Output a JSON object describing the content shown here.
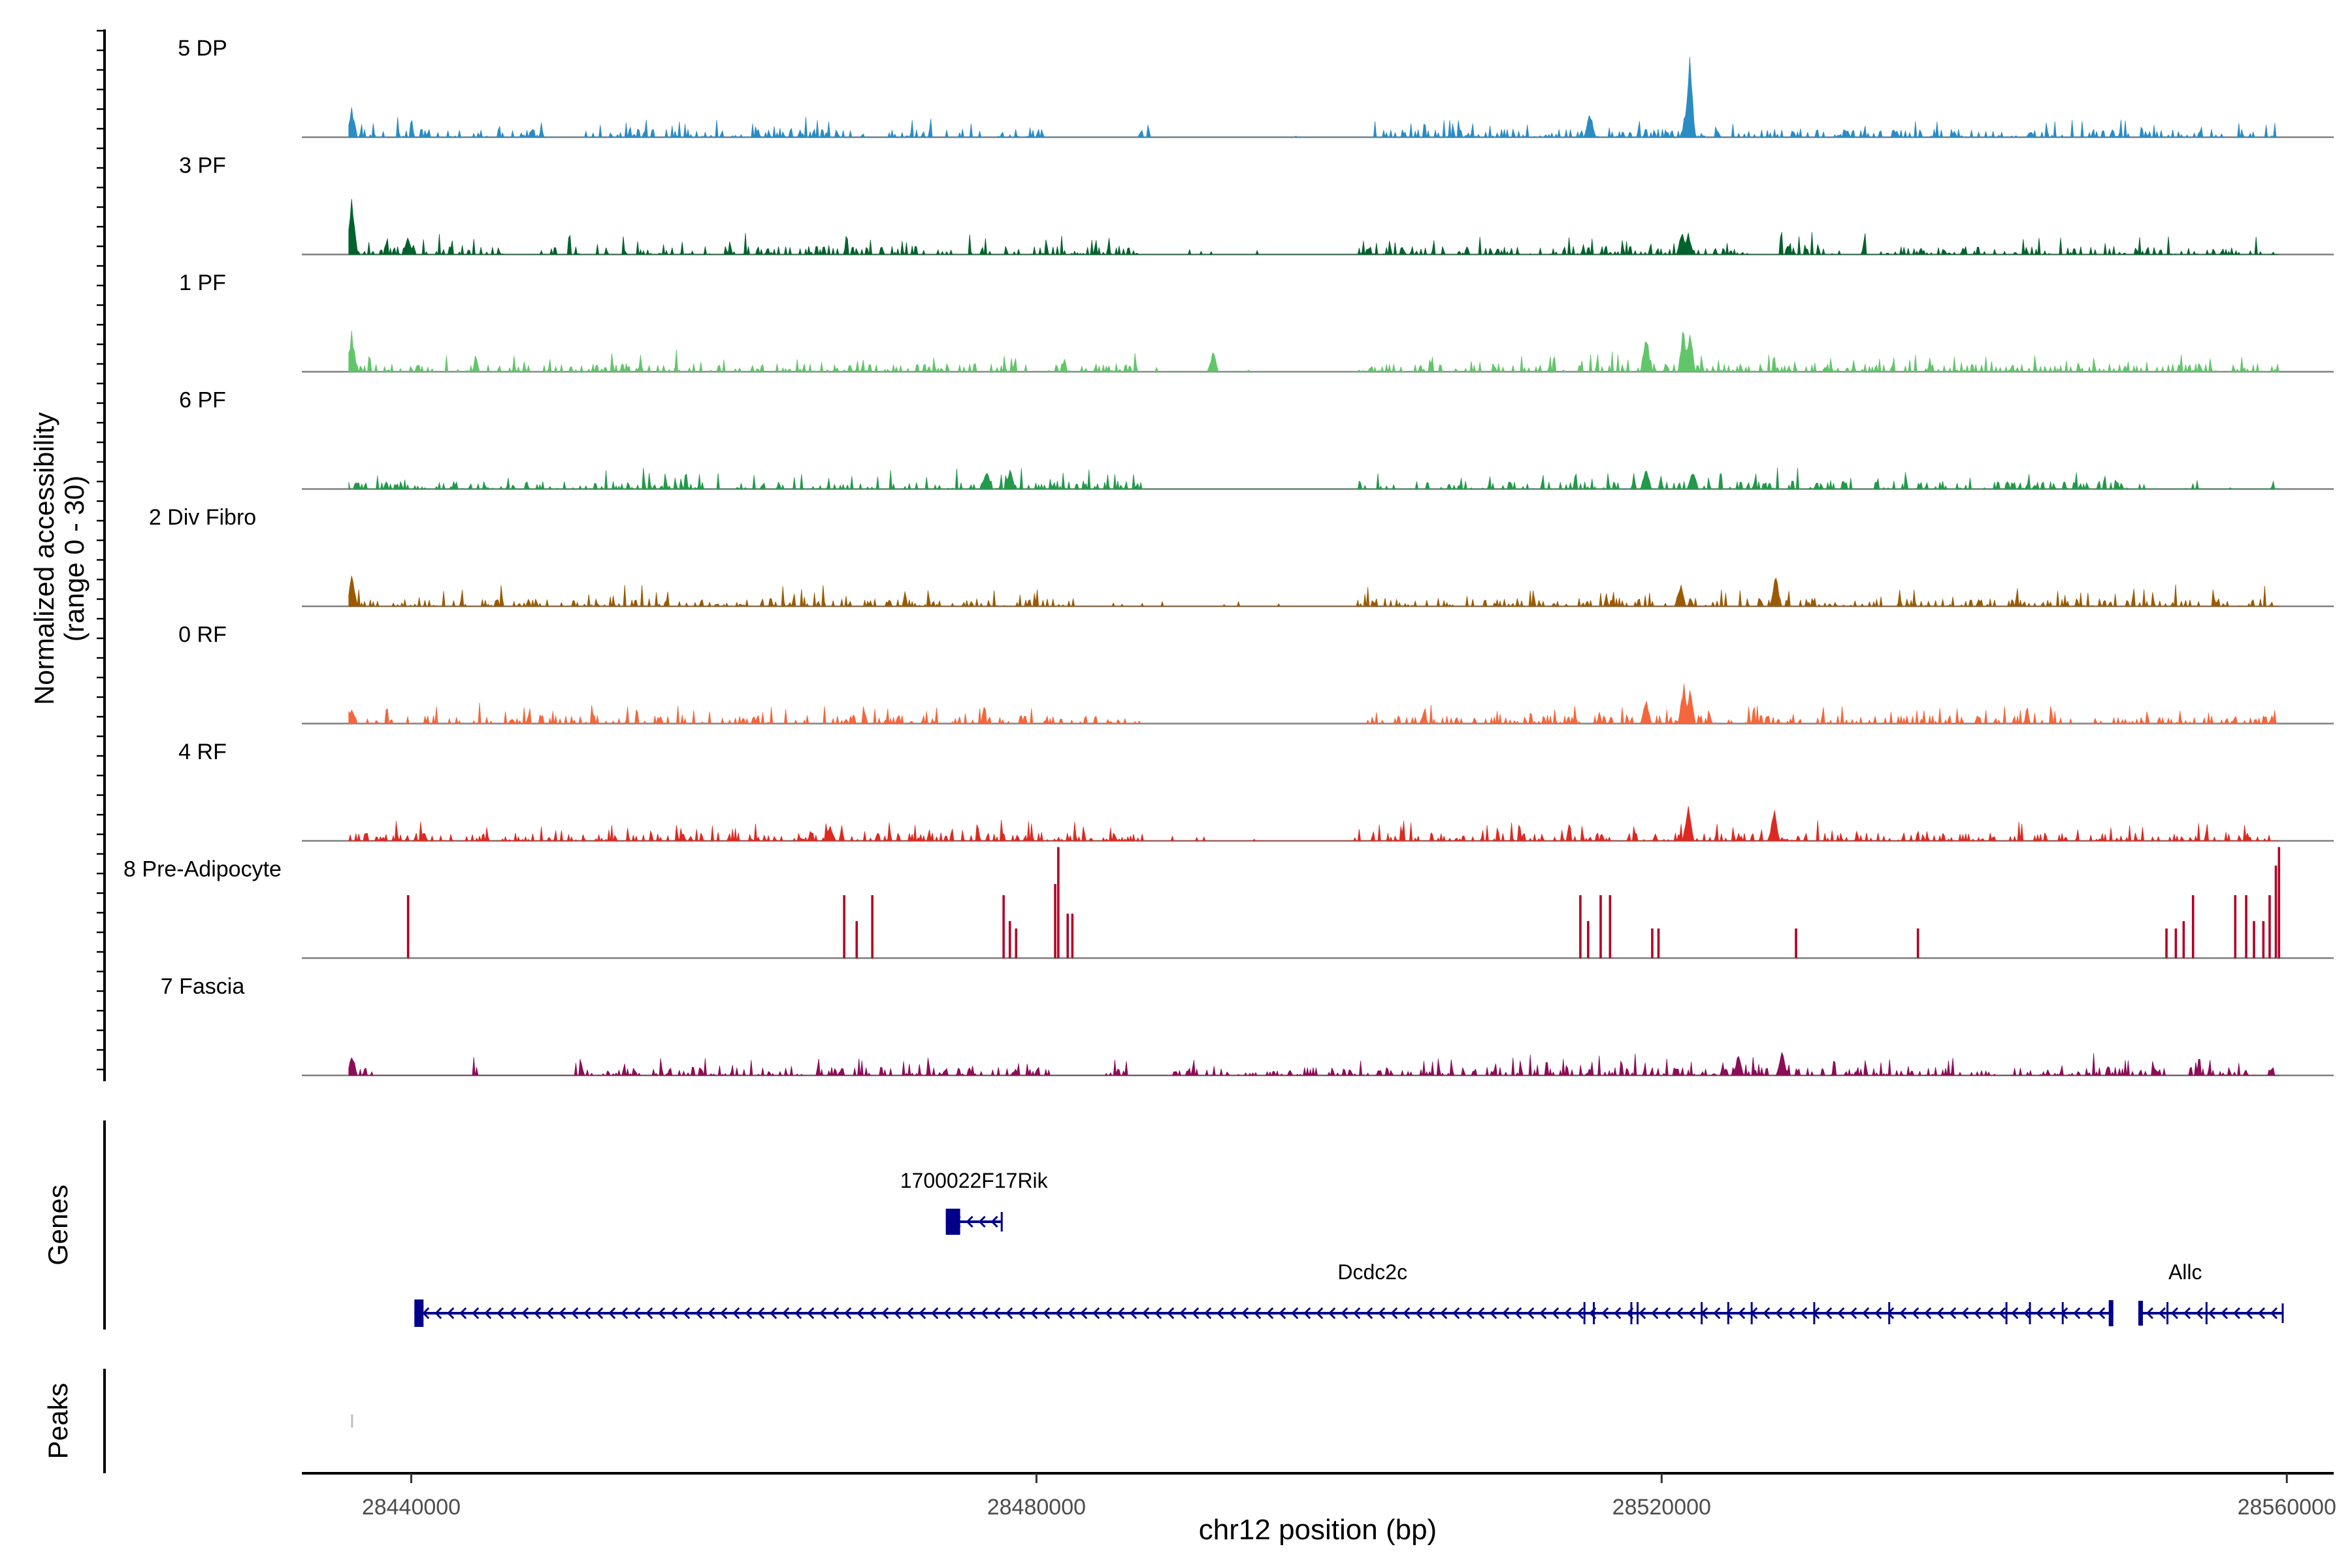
{
  "chart_data": {
    "type": "area",
    "title": "",
    "chromosome": "chr12",
    "xlabel": "chr12 position (bp)",
    "ylabel_line1": "Normalized accessibility",
    "ylabel_line2": "(range 0 - 30)",
    "xlim": [
      28433000,
      28563000
    ],
    "data_x_range": [
      28436000,
      28559500
    ],
    "ylim": [
      0,
      30
    ],
    "x_ticks": [
      {
        "value": 28440000,
        "label": "28440000"
      },
      {
        "value": 28480000,
        "label": "28480000"
      },
      {
        "value": 28520000,
        "label": "28520000"
      },
      {
        "value": 28560000,
        "label": "28560000"
      }
    ],
    "series": [
      {
        "name": "5 DP",
        "color": "#2b8cc4",
        "peaks": [
          [
            28436200,
            9
          ],
          [
            28515400,
            8
          ],
          [
            28521800,
            22
          ],
          [
            28521600,
            10
          ]
        ],
        "gaps": [
          [
            28448500,
            28451000
          ],
          [
            28469000,
            28470500
          ],
          [
            28476500,
            28477500
          ],
          [
            28480500,
            28484500
          ],
          [
            28484800,
            28486500
          ],
          [
            28487500,
            28501500
          ]
        ]
      },
      {
        "name": "3 PF",
        "color": "#00622c",
        "peaks": [
          [
            28436200,
            17
          ],
          [
            28439800,
            5
          ],
          [
            28521300,
            7
          ],
          [
            28521700,
            6
          ]
        ],
        "gaps": [
          [
            28446000,
            28448000
          ],
          [
            28487000,
            28500500
          ],
          [
            28525500,
            28527500
          ]
        ]
      },
      {
        "name": "1 PF",
        "color": "#62c56a",
        "peaks": [
          [
            28436200,
            12
          ],
          [
            28519000,
            12
          ],
          [
            28521400,
            13
          ],
          [
            28521800,
            13
          ],
          [
            28491300,
            6
          ]
        ],
        "gaps": [
          [
            28487000,
            28500500
          ]
        ]
      },
      {
        "name": "6 PF",
        "color": "#23994a",
        "peaks": [
          [
            28519000,
            7
          ],
          [
            28522000,
            6
          ],
          [
            28476800,
            6
          ],
          [
            28478300,
            6
          ]
        ],
        "gaps": [
          [
            28487000,
            28500500
          ],
          [
            28551000,
            28553500
          ],
          [
            28554500,
            28558500
          ]
        ]
      },
      {
        "name": "2 Div Fibro",
        "color": "#9b5a00",
        "peaks": [
          [
            28436200,
            9
          ],
          [
            28527300,
            10
          ],
          [
            28521200,
            7
          ]
        ],
        "gaps": [
          [
            28482500,
            28486500
          ],
          [
            28487000,
            28500500
          ]
        ]
      },
      {
        "name": "0 RF",
        "color": "#f4673c",
        "peaks": [
          [
            28521400,
            12
          ],
          [
            28521800,
            10
          ],
          [
            28519000,
            7
          ],
          [
            28436200,
            4
          ]
        ],
        "gaps": [
          [
            28487000,
            28500500
          ]
        ]
      },
      {
        "name": "4 RF",
        "color": "#dc2a23",
        "peaks": [
          [
            28521700,
            11
          ],
          [
            28527200,
            9
          ],
          [
            28466800,
            5
          ]
        ],
        "gaps": [
          [
            28487000,
            28500500
          ]
        ]
      },
      {
        "name": "8 Pre-Adipocyte",
        "color": "#b40025",
        "spikes": [
          [
            28439800,
            17
          ],
          [
            28467700,
            17
          ],
          [
            28468500,
            10
          ],
          [
            28469500,
            17
          ],
          [
            28477900,
            17
          ],
          [
            28478300,
            10
          ],
          [
            28478700,
            8
          ],
          [
            28481200,
            20
          ],
          [
            28481400,
            30
          ],
          [
            28482000,
            12
          ],
          [
            28482300,
            12
          ],
          [
            28514800,
            17
          ],
          [
            28515300,
            10
          ],
          [
            28516100,
            17
          ],
          [
            28516700,
            17
          ],
          [
            28519400,
            8
          ],
          [
            28519800,
            8
          ],
          [
            28528600,
            8
          ],
          [
            28536400,
            8
          ],
          [
            28552300,
            8
          ],
          [
            28552900,
            8
          ],
          [
            28553400,
            10
          ],
          [
            28554000,
            17
          ],
          [
            28556700,
            17
          ],
          [
            28557400,
            17
          ],
          [
            28557900,
            10
          ],
          [
            28558500,
            10
          ],
          [
            28558900,
            17
          ],
          [
            28559300,
            25
          ],
          [
            28559500,
            30
          ]
        ]
      },
      {
        "name": "7 Fascia",
        "color": "#8c0d58",
        "peaks": [
          [
            28436200,
            6
          ],
          [
            28527700,
            7
          ],
          [
            28524900,
            6
          ]
        ],
        "gaps": [
          [
            28437500,
            28443500
          ],
          [
            28444500,
            28450500
          ],
          [
            28481500,
            28484000
          ],
          [
            28486000,
            28488500
          ]
        ]
      }
    ]
  },
  "genes_panel": {
    "label": "Genes",
    "genes": [
      {
        "name": "1700022F17Rik",
        "start": 28474200,
        "end": 28477800,
        "strand": "-",
        "label_x": 28476000,
        "row": 0
      },
      {
        "name": "Dcdc2c",
        "start": 28440200,
        "end": 28548900,
        "strand": "-",
        "label_x": 28501500,
        "row": 1
      },
      {
        "name": "Allc",
        "start": 28550500,
        "end": 28559800,
        "strand": "-",
        "label_x": 28553500,
        "row": 1
      }
    ]
  },
  "peaks_panel": {
    "label": "Peaks",
    "peaks": [
      {
        "start": 28436150,
        "end": 28436250
      }
    ]
  },
  "colors": {
    "gene": "#00008b",
    "axis": "#000000",
    "baseline": "#7f7f7f",
    "peak": "#bfbfbf"
  }
}
